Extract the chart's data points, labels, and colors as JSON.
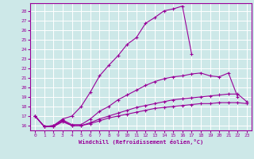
{
  "xlabel": "Windchill (Refroidissement éolien,°C)",
  "background_color": "#cde8e8",
  "grid_color": "#ffffff",
  "line_color": "#990099",
  "xlim": [
    -0.5,
    23.5
  ],
  "ylim": [
    15.5,
    28.8
  ],
  "xticks": [
    0,
    1,
    2,
    3,
    4,
    5,
    6,
    7,
    8,
    9,
    10,
    11,
    12,
    13,
    14,
    15,
    16,
    17,
    18,
    19,
    20,
    21,
    22,
    23
  ],
  "yticks": [
    16,
    17,
    18,
    19,
    20,
    21,
    22,
    23,
    24,
    25,
    26,
    27,
    28
  ],
  "series": [
    {
      "x": [
        0,
        1,
        2,
        3,
        4,
        5,
        6,
        7,
        8,
        9,
        10,
        11,
        12,
        13,
        14,
        15,
        16,
        17
      ],
      "y": [
        17.0,
        15.9,
        16.0,
        16.7,
        17.0,
        18.0,
        19.5,
        21.2,
        22.3,
        23.3,
        24.5,
        25.2,
        26.7,
        27.3,
        28.0,
        28.2,
        28.5,
        23.5
      ]
    },
    {
      "x": [
        0,
        1,
        2,
        3,
        4,
        5,
        6,
        7,
        8,
        9,
        10,
        11,
        12,
        13,
        14,
        15,
        16,
        17,
        18,
        19,
        20,
        21,
        22
      ],
      "y": [
        17.0,
        15.9,
        16.0,
        16.6,
        16.1,
        16.1,
        16.7,
        17.5,
        18.0,
        18.7,
        19.2,
        19.7,
        20.2,
        20.6,
        20.9,
        21.1,
        21.2,
        21.4,
        21.5,
        21.2,
        21.1,
        21.5,
        19.0
      ]
    },
    {
      "x": [
        0,
        1,
        2,
        3,
        4,
        5,
        6,
        7,
        8,
        9,
        10,
        11,
        12,
        13,
        14,
        15,
        16,
        17,
        18,
        19,
        20,
        21,
        22,
        23
      ],
      "y": [
        17.0,
        15.9,
        15.9,
        16.5,
        16.0,
        16.0,
        16.3,
        16.7,
        17.0,
        17.3,
        17.6,
        17.9,
        18.1,
        18.3,
        18.5,
        18.7,
        18.8,
        18.9,
        19.0,
        19.1,
        19.2,
        19.3,
        19.3,
        18.5
      ]
    },
    {
      "x": [
        0,
        1,
        2,
        3,
        4,
        5,
        6,
        7,
        8,
        9,
        10,
        11,
        12,
        13,
        14,
        15,
        16,
        17,
        18,
        19,
        20,
        21,
        22,
        23
      ],
      "y": [
        17.0,
        15.9,
        15.9,
        16.4,
        16.0,
        16.0,
        16.2,
        16.5,
        16.8,
        17.0,
        17.2,
        17.4,
        17.6,
        17.8,
        17.9,
        18.0,
        18.1,
        18.2,
        18.3,
        18.3,
        18.4,
        18.4,
        18.4,
        18.3
      ]
    }
  ]
}
